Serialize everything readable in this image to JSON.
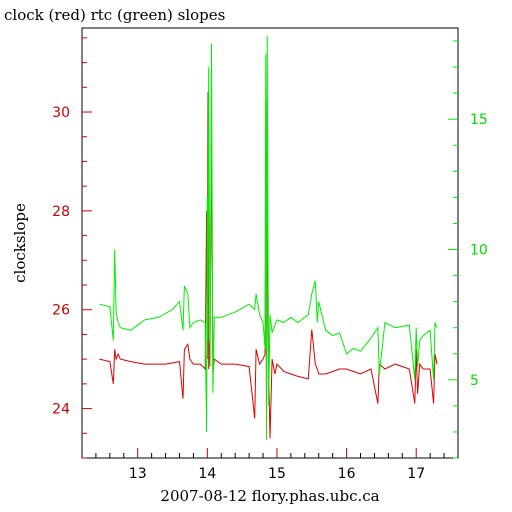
{
  "chart_data": {
    "type": "line",
    "title": "clock (red) rtc (green) slopes",
    "xlabel": "2007-08-12 flory.phas.ubc.ca",
    "ylabel": "clockslope",
    "xlim": [
      12.2,
      17.6
    ],
    "ylim_left": [
      23.0,
      31.7
    ],
    "ylim_right": [
      2.0,
      18.5
    ],
    "x_ticks": [
      13,
      14,
      15,
      16,
      17
    ],
    "y_ticks_left": [
      24,
      26,
      28,
      30
    ],
    "y_ticks_right": [
      5,
      10,
      15
    ],
    "grid": false,
    "colors": {
      "clock": "#dd0000",
      "rtc": "#00ee00",
      "axis": "#000000"
    },
    "series": [
      {
        "name": "clock",
        "axis": "left",
        "x": [
          12.45,
          12.6,
          12.65,
          12.67,
          12.69,
          12.72,
          12.75,
          12.9,
          13.1,
          13.4,
          13.6,
          13.65,
          13.67,
          13.72,
          13.75,
          13.8,
          13.9,
          13.97,
          13.99,
          14.0,
          14.01,
          14.02,
          14.04,
          14.06,
          14.08,
          14.1,
          14.2,
          14.4,
          14.6,
          14.68,
          14.7,
          14.75,
          14.8,
          14.83,
          14.84,
          14.85,
          14.86,
          14.88,
          14.9,
          14.93,
          14.97,
          15.0,
          15.1,
          15.2,
          15.3,
          15.45,
          15.5,
          15.55,
          15.58,
          15.6,
          15.7,
          15.9,
          16.0,
          16.1,
          16.2,
          16.35,
          16.45,
          16.47,
          16.55,
          16.7,
          16.9,
          16.98,
          17.0,
          17.02,
          17.05,
          17.1,
          17.2,
          17.25,
          17.27,
          17.3
        ],
        "y": [
          25.0,
          24.95,
          24.5,
          25.2,
          25.0,
          25.1,
          25.0,
          24.95,
          24.9,
          24.9,
          24.95,
          24.2,
          25.2,
          25.3,
          25.0,
          24.9,
          24.9,
          24.8,
          28.0,
          25.0,
          30.4,
          24.8,
          25.5,
          29.5,
          24.7,
          25.0,
          24.9,
          24.9,
          24.85,
          23.8,
          25.2,
          24.9,
          25.0,
          25.1,
          30.2,
          23.5,
          28.6,
          24.8,
          23.4,
          25.0,
          24.7,
          24.9,
          24.75,
          24.7,
          24.65,
          24.6,
          25.6,
          24.9,
          24.8,
          24.7,
          24.7,
          24.8,
          24.8,
          24.75,
          24.7,
          24.8,
          24.1,
          24.9,
          24.8,
          24.9,
          24.8,
          24.1,
          25.2,
          24.3,
          24.9,
          24.8,
          24.8,
          24.1,
          25.1,
          24.9
        ]
      },
      {
        "name": "rtc",
        "axis": "right",
        "x": [
          12.45,
          12.6,
          12.65,
          12.67,
          12.69,
          12.72,
          12.75,
          12.9,
          13.1,
          13.3,
          13.5,
          13.6,
          13.65,
          13.67,
          13.72,
          13.75,
          13.8,
          13.9,
          13.97,
          13.99,
          14.0,
          14.01,
          14.02,
          14.04,
          14.06,
          14.08,
          14.1,
          14.2,
          14.4,
          14.6,
          14.68,
          14.7,
          14.75,
          14.8,
          14.83,
          14.84,
          14.85,
          14.86,
          14.88,
          14.9,
          14.93,
          14.97,
          15.0,
          15.1,
          15.2,
          15.3,
          15.45,
          15.5,
          15.55,
          15.58,
          15.6,
          15.7,
          15.8,
          15.9,
          16.0,
          16.1,
          16.2,
          16.35,
          16.45,
          16.47,
          16.55,
          16.7,
          16.9,
          16.98,
          17.0,
          17.02,
          17.05,
          17.1,
          17.2,
          17.25,
          17.27,
          17.3
        ],
        "y": [
          7.9,
          7.8,
          6.5,
          10.0,
          7.6,
          7.2,
          7.0,
          6.9,
          7.3,
          7.4,
          7.7,
          8.0,
          6.9,
          8.6,
          8.3,
          7.0,
          7.2,
          7.3,
          7.2,
          3.0,
          12.0,
          6.5,
          17.0,
          5.5,
          17.9,
          4.5,
          7.4,
          7.4,
          7.6,
          7.9,
          7.7,
          8.3,
          7.5,
          7.2,
          6.2,
          17.5,
          2.7,
          18.2,
          4.0,
          7.5,
          6.8,
          7.1,
          7.3,
          7.2,
          7.4,
          7.2,
          7.5,
          8.3,
          8.8,
          7.2,
          8.0,
          6.9,
          6.7,
          6.8,
          6.0,
          6.2,
          6.1,
          6.6,
          7.0,
          5.2,
          7.2,
          7.0,
          7.1,
          5.0,
          7.0,
          5.5,
          6.5,
          6.7,
          6.9,
          5.0,
          7.2,
          7.0
        ]
      }
    ]
  }
}
